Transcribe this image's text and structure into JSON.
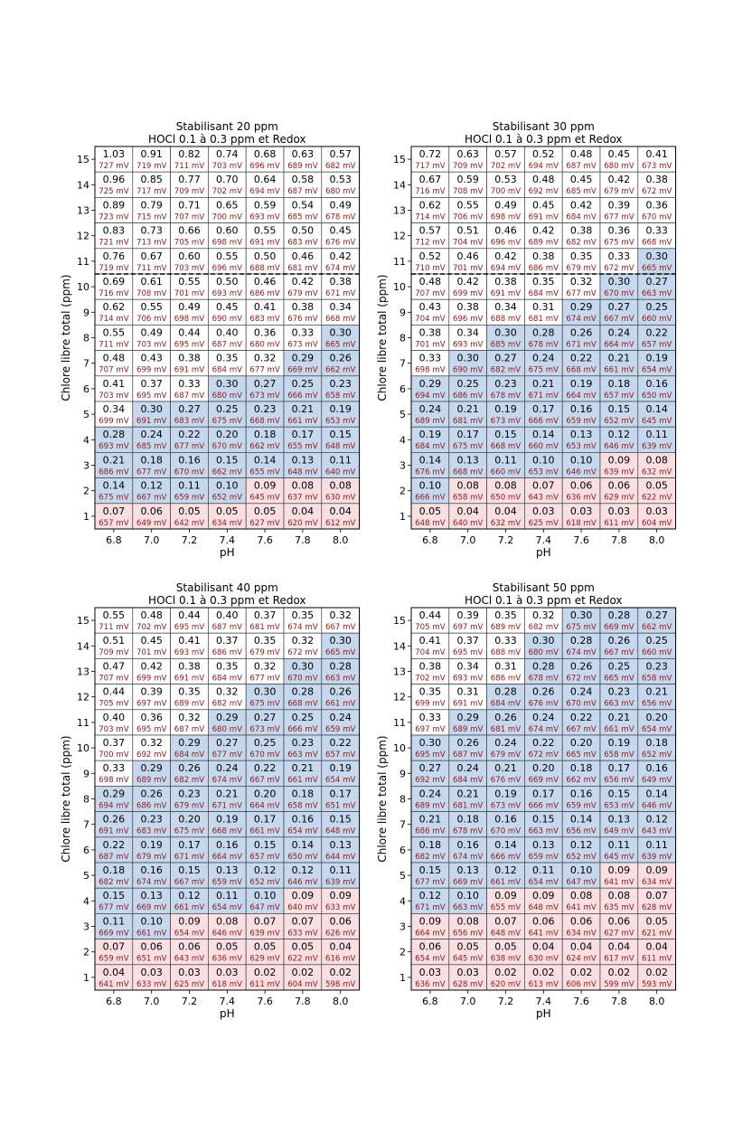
{
  "colors": {
    "in_range": "#c6d8ee",
    "low": "#f9dfe1",
    "high": "#ffffff",
    "grid": "#404040",
    "hocl_text": "#000000",
    "mv_text": "#8b1a1a"
  },
  "chart_data": [
    {
      "type": "heatmap",
      "title": "Stabilisant 20 ppm",
      "subtitle": "HOCl 0.1 à 0.3 ppm et Redox",
      "xlabel": "pH",
      "ylabel": "Chlore libre total (ppm)",
      "x": [
        "6.8",
        "7.0",
        "7.2",
        "7.4",
        "7.6",
        "7.8",
        "8.0"
      ],
      "y": [
        15,
        14,
        13,
        12,
        11,
        10,
        9,
        8,
        7,
        6,
        5,
        4,
        3,
        2,
        1
      ],
      "threshold_line_between": [
        11,
        10
      ],
      "hocl": [
        [
          "1.03",
          "0.91",
          "0.82",
          "0.74",
          "0.68",
          "0.63",
          "0.57"
        ],
        [
          "0.96",
          "0.85",
          "0.77",
          "0.70",
          "0.64",
          "0.58",
          "0.53"
        ],
        [
          "0.89",
          "0.79",
          "0.71",
          "0.65",
          "0.59",
          "0.54",
          "0.49"
        ],
        [
          "0.83",
          "0.73",
          "0.66",
          "0.60",
          "0.55",
          "0.50",
          "0.45"
        ],
        [
          "0.76",
          "0.67",
          "0.60",
          "0.55",
          "0.50",
          "0.46",
          "0.42"
        ],
        [
          "0.69",
          "0.61",
          "0.55",
          "0.50",
          "0.46",
          "0.42",
          "0.38"
        ],
        [
          "0.62",
          "0.55",
          "0.49",
          "0.45",
          "0.41",
          "0.38",
          "0.34"
        ],
        [
          "0.55",
          "0.49",
          "0.44",
          "0.40",
          "0.36",
          "0.33",
          "0.30"
        ],
        [
          "0.48",
          "0.43",
          "0.38",
          "0.35",
          "0.32",
          "0.29",
          "0.26"
        ],
        [
          "0.41",
          "0.37",
          "0.33",
          "0.30",
          "0.27",
          "0.25",
          "0.23"
        ],
        [
          "0.34",
          "0.30",
          "0.27",
          "0.25",
          "0.23",
          "0.21",
          "0.19"
        ],
        [
          "0.28",
          "0.24",
          "0.22",
          "0.20",
          "0.18",
          "0.17",
          "0.15"
        ],
        [
          "0.21",
          "0.18",
          "0.16",
          "0.15",
          "0.14",
          "0.13",
          "0.11"
        ],
        [
          "0.14",
          "0.12",
          "0.11",
          "0.10",
          "0.09",
          "0.08",
          "0.08"
        ],
        [
          "0.07",
          "0.06",
          "0.05",
          "0.05",
          "0.05",
          "0.04",
          "0.04"
        ]
      ],
      "redox_mv": [
        [
          727,
          719,
          711,
          703,
          696,
          689,
          682
        ],
        [
          725,
          717,
          709,
          702,
          694,
          687,
          680
        ],
        [
          723,
          715,
          707,
          700,
          693,
          685,
          678
        ],
        [
          721,
          713,
          705,
          698,
          691,
          683,
          676
        ],
        [
          719,
          711,
          703,
          696,
          688,
          681,
          674
        ],
        [
          716,
          708,
          701,
          693,
          686,
          679,
          671
        ],
        [
          714,
          706,
          698,
          690,
          683,
          676,
          668
        ],
        [
          711,
          703,
          695,
          687,
          680,
          673,
          665
        ],
        [
          707,
          699,
          691,
          684,
          677,
          669,
          662
        ],
        [
          703,
          695,
          687,
          680,
          673,
          666,
          658
        ],
        [
          699,
          691,
          683,
          675,
          668,
          661,
          653
        ],
        [
          693,
          685,
          677,
          670,
          662,
          655,
          648
        ],
        [
          686,
          677,
          670,
          662,
          655,
          648,
          640
        ],
        [
          675,
          667,
          659,
          652,
          645,
          637,
          630
        ],
        [
          657,
          649,
          642,
          634,
          627,
          620,
          612
        ]
      ]
    },
    {
      "type": "heatmap",
      "title": "Stabilisant 30 ppm",
      "subtitle": "HOCl 0.1 à 0.3 ppm et Redox",
      "xlabel": "pH",
      "ylabel": "Chlore libre total (ppm)",
      "x": [
        "6.8",
        "7.0",
        "7.2",
        "7.4",
        "7.6",
        "7.8",
        "8.0"
      ],
      "y": [
        15,
        14,
        13,
        12,
        11,
        10,
        9,
        8,
        7,
        6,
        5,
        4,
        3,
        2,
        1
      ],
      "threshold_line_between": [
        11,
        10
      ],
      "hocl": [
        [
          "0.72",
          "0.63",
          "0.57",
          "0.52",
          "0.48",
          "0.45",
          "0.41"
        ],
        [
          "0.67",
          "0.59",
          "0.53",
          "0.48",
          "0.45",
          "0.42",
          "0.38"
        ],
        [
          "0.62",
          "0.55",
          "0.49",
          "0.45",
          "0.42",
          "0.39",
          "0.36"
        ],
        [
          "0.57",
          "0.51",
          "0.46",
          "0.42",
          "0.38",
          "0.36",
          "0.33"
        ],
        [
          "0.52",
          "0.46",
          "0.42",
          "0.38",
          "0.35",
          "0.33",
          "0.30"
        ],
        [
          "0.48",
          "0.42",
          "0.38",
          "0.35",
          "0.32",
          "0.30",
          "0.27"
        ],
        [
          "0.43",
          "0.38",
          "0.34",
          "0.31",
          "0.29",
          "0.27",
          "0.25"
        ],
        [
          "0.38",
          "0.34",
          "0.30",
          "0.28",
          "0.26",
          "0.24",
          "0.22"
        ],
        [
          "0.33",
          "0.30",
          "0.27",
          "0.24",
          "0.22",
          "0.21",
          "0.19"
        ],
        [
          "0.29",
          "0.25",
          "0.23",
          "0.21",
          "0.19",
          "0.18",
          "0.16"
        ],
        [
          "0.24",
          "0.21",
          "0.19",
          "0.17",
          "0.16",
          "0.15",
          "0.14"
        ],
        [
          "0.19",
          "0.17",
          "0.15",
          "0.14",
          "0.13",
          "0.12",
          "0.11"
        ],
        [
          "0.14",
          "0.13",
          "0.11",
          "0.10",
          "0.10",
          "0.09",
          "0.08"
        ],
        [
          "0.10",
          "0.08",
          "0.08",
          "0.07",
          "0.06",
          "0.06",
          "0.05"
        ],
        [
          "0.05",
          "0.04",
          "0.04",
          "0.03",
          "0.03",
          "0.03",
          "0.03"
        ]
      ],
      "redox_mv": [
        [
          717,
          709,
          702,
          694,
          687,
          680,
          673
        ],
        [
          716,
          708,
          700,
          692,
          685,
          679,
          672
        ],
        [
          714,
          706,
          698,
          691,
          684,
          677,
          670
        ],
        [
          712,
          704,
          696,
          689,
          682,
          675,
          668
        ],
        [
          710,
          701,
          694,
          686,
          679,
          672,
          665
        ],
        [
          707,
          699,
          691,
          684,
          677,
          670,
          663
        ],
        [
          704,
          696,
          688,
          681,
          674,
          667,
          660
        ],
        [
          701,
          693,
          685,
          678,
          671,
          664,
          657
        ],
        [
          698,
          690,
          682,
          675,
          668,
          661,
          654
        ],
        [
          694,
          686,
          678,
          671,
          664,
          657,
          650
        ],
        [
          689,
          681,
          673,
          666,
          659,
          652,
          645
        ],
        [
          684,
          675,
          668,
          660,
          653,
          646,
          639
        ],
        [
          676,
          668,
          660,
          653,
          646,
          639,
          632
        ],
        [
          666,
          658,
          650,
          643,
          636,
          629,
          622
        ],
        [
          648,
          640,
          632,
          625,
          618,
          611,
          604
        ]
      ]
    },
    {
      "type": "heatmap",
      "title": "Stabilisant 40 ppm",
      "subtitle": "HOCl 0.1 à 0.3 ppm et Redox",
      "xlabel": "pH",
      "ylabel": "Chlore libre total (ppm)",
      "x": [
        "6.8",
        "7.0",
        "7.2",
        "7.4",
        "7.6",
        "7.8",
        "8.0"
      ],
      "y": [
        15,
        14,
        13,
        12,
        11,
        10,
        9,
        8,
        7,
        6,
        5,
        4,
        3,
        2,
        1
      ],
      "hocl": [
        [
          "0.55",
          "0.48",
          "0.44",
          "0.40",
          "0.37",
          "0.35",
          "0.32"
        ],
        [
          "0.51",
          "0.45",
          "0.41",
          "0.37",
          "0.35",
          "0.32",
          "0.30"
        ],
        [
          "0.47",
          "0.42",
          "0.38",
          "0.35",
          "0.32",
          "0.30",
          "0.28"
        ],
        [
          "0.44",
          "0.39",
          "0.35",
          "0.32",
          "0.30",
          "0.28",
          "0.26"
        ],
        [
          "0.40",
          "0.36",
          "0.32",
          "0.29",
          "0.27",
          "0.25",
          "0.24"
        ],
        [
          "0.37",
          "0.32",
          "0.29",
          "0.27",
          "0.25",
          "0.23",
          "0.22"
        ],
        [
          "0.33",
          "0.29",
          "0.26",
          "0.24",
          "0.22",
          "0.21",
          "0.19"
        ],
        [
          "0.29",
          "0.26",
          "0.23",
          "0.21",
          "0.20",
          "0.18",
          "0.17"
        ],
        [
          "0.26",
          "0.23",
          "0.20",
          "0.19",
          "0.17",
          "0.16",
          "0.15"
        ],
        [
          "0.22",
          "0.19",
          "0.17",
          "0.16",
          "0.15",
          "0.14",
          "0.13"
        ],
        [
          "0.18",
          "0.16",
          "0.15",
          "0.13",
          "0.12",
          "0.12",
          "0.11"
        ],
        [
          "0.15",
          "0.13",
          "0.12",
          "0.11",
          "0.10",
          "0.09",
          "0.09"
        ],
        [
          "0.11",
          "0.10",
          "0.09",
          "0.08",
          "0.07",
          "0.07",
          "0.06"
        ],
        [
          "0.07",
          "0.06",
          "0.06",
          "0.05",
          "0.05",
          "0.05",
          "0.04"
        ],
        [
          "0.04",
          "0.03",
          "0.03",
          "0.03",
          "0.02",
          "0.02",
          "0.02"
        ]
      ],
      "redox_mv": [
        [
          711,
          702,
          695,
          687,
          681,
          674,
          667
        ],
        [
          709,
          701,
          693,
          686,
          679,
          672,
          665
        ],
        [
          707,
          699,
          691,
          684,
          677,
          670,
          663
        ],
        [
          705,
          697,
          689,
          682,
          675,
          668,
          661
        ],
        [
          703,
          695,
          687,
          680,
          673,
          666,
          659
        ],
        [
          700,
          692,
          684,
          677,
          670,
          663,
          657
        ],
        [
          698,
          689,
          682,
          674,
          667,
          661,
          654
        ],
        [
          694,
          686,
          679,
          671,
          664,
          658,
          651
        ],
        [
          691,
          683,
          675,
          668,
          661,
          654,
          648
        ],
        [
          687,
          679,
          671,
          664,
          657,
          650,
          644
        ],
        [
          682,
          674,
          667,
          659,
          652,
          646,
          639
        ],
        [
          677,
          669,
          661,
          654,
          647,
          640,
          633
        ],
        [
          669,
          661,
          654,
          646,
          639,
          633,
          626
        ],
        [
          659,
          651,
          643,
          636,
          629,
          622,
          616
        ],
        [
          641,
          633,
          625,
          618,
          611,
          604,
          598
        ]
      ]
    },
    {
      "type": "heatmap",
      "title": "Stabilisant 50 ppm",
      "subtitle": "HOCl 0.1 à 0.3 ppm et Redox",
      "xlabel": "pH",
      "ylabel": "Chlore libre total (ppm)",
      "x": [
        "6.8",
        "7.0",
        "7.2",
        "7.4",
        "7.6",
        "7.8",
        "8.0"
      ],
      "y": [
        15,
        14,
        13,
        12,
        11,
        10,
        9,
        8,
        7,
        6,
        5,
        4,
        3,
        2,
        1
      ],
      "hocl": [
        [
          "0.44",
          "0.39",
          "0.35",
          "0.32",
          "0.30",
          "0.28",
          "0.27"
        ],
        [
          "0.41",
          "0.37",
          "0.33",
          "0.30",
          "0.28",
          "0.26",
          "0.25"
        ],
        [
          "0.38",
          "0.34",
          "0.31",
          "0.28",
          "0.26",
          "0.25",
          "0.23"
        ],
        [
          "0.35",
          "0.31",
          "0.28",
          "0.26",
          "0.24",
          "0.23",
          "0.21"
        ],
        [
          "0.33",
          "0.29",
          "0.26",
          "0.24",
          "0.22",
          "0.21",
          "0.20"
        ],
        [
          "0.30",
          "0.26",
          "0.24",
          "0.22",
          "0.20",
          "0.19",
          "0.18"
        ],
        [
          "0.27",
          "0.24",
          "0.21",
          "0.20",
          "0.18",
          "0.17",
          "0.16"
        ],
        [
          "0.24",
          "0.21",
          "0.19",
          "0.17",
          "0.16",
          "0.15",
          "0.14"
        ],
        [
          "0.21",
          "0.18",
          "0.16",
          "0.15",
          "0.14",
          "0.13",
          "0.12"
        ],
        [
          "0.18",
          "0.16",
          "0.14",
          "0.13",
          "0.12",
          "0.11",
          "0.11"
        ],
        [
          "0.15",
          "0.13",
          "0.12",
          "0.11",
          "0.10",
          "0.09",
          "0.09"
        ],
        [
          "0.12",
          "0.10",
          "0.09",
          "0.09",
          "0.08",
          "0.08",
          "0.07"
        ],
        [
          "0.09",
          "0.08",
          "0.07",
          "0.06",
          "0.06",
          "0.06",
          "0.05"
        ],
        [
          "0.06",
          "0.05",
          "0.05",
          "0.04",
          "0.04",
          "0.04",
          "0.04"
        ],
        [
          "0.03",
          "0.03",
          "0.02",
          "0.02",
          "0.02",
          "0.02",
          "0.02"
        ]
      ],
      "redox_mv": [
        [
          705,
          697,
          689,
          682,
          675,
          669,
          662
        ],
        [
          704,
          695,
          688,
          680,
          674,
          667,
          660
        ],
        [
          702,
          693,
          686,
          678,
          672,
          665,
          658
        ],
        [
          699,
          691,
          684,
          676,
          670,
          663,
          656
        ],
        [
          697,
          689,
          681,
          674,
          667,
          661,
          654
        ],
        [
          695,
          687,
          679,
          672,
          665,
          658,
          652
        ],
        [
          692,
          684,
          676,
          669,
          662,
          656,
          649
        ],
        [
          689,
          681,
          673,
          666,
          659,
          653,
          646
        ],
        [
          686,
          678,
          670,
          663,
          656,
          649,
          643
        ],
        [
          682,
          674,
          666,
          659,
          652,
          645,
          639
        ],
        [
          677,
          669,
          661,
          654,
          647,
          641,
          634
        ],
        [
          671,
          663,
          655,
          648,
          641,
          635,
          628
        ],
        [
          664,
          656,
          648,
          641,
          634,
          627,
          621
        ],
        [
          654,
          645,
          638,
          630,
          624,
          617,
          611
        ],
        [
          636,
          628,
          620,
          613,
          606,
          599,
          593
        ]
      ]
    }
  ]
}
